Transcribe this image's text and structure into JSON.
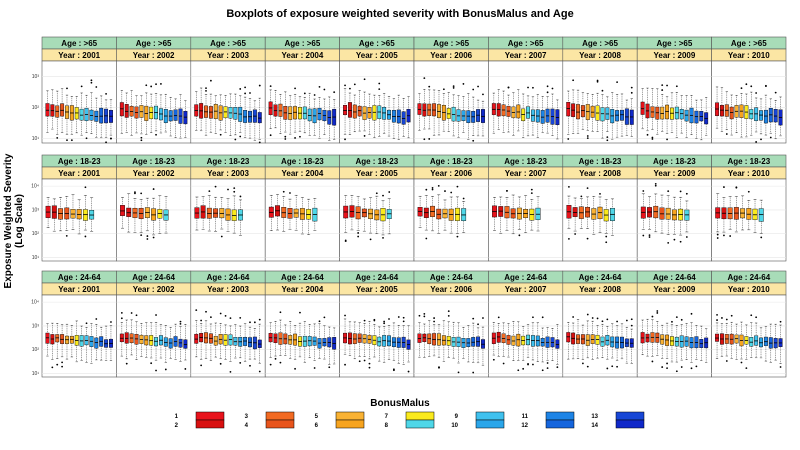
{
  "chart_data": {
    "type": "boxplot",
    "title": "Boxplots of exposure weighted severity with BonusMalus and Age",
    "ylabel": "Exposure Weighted Severity (Log Scale)",
    "y_scale": "log",
    "age_rows": [
      {
        "label": "Age : >65",
        "tick_labels": [
          "10¹",
          "10²",
          "10³"
        ],
        "tick_exponents": [
          1,
          2,
          3
        ],
        "ylim_log10": [
          0.85,
          3.5
        ],
        "bonusmalus_levels": 14
      },
      {
        "label": "Age : 18-23",
        "tick_labels": [
          "10¹",
          "10²",
          "10³",
          "10⁴"
        ],
        "tick_exponents": [
          1,
          2,
          3,
          4
        ],
        "ylim_log10": [
          0.85,
          4.3
        ],
        "bonusmalus_levels": 8
      },
      {
        "label": "Age : 24-64",
        "tick_labels": [
          "10¹",
          "10²",
          "10³",
          "10⁴"
        ],
        "tick_exponents": [
          1,
          2,
          3,
          4
        ],
        "ylim_log10": [
          0.85,
          4.3
        ],
        "bonusmalus_levels": 14
      }
    ],
    "years": [
      "Year : 2001",
      "Year : 2002",
      "Year : 2003",
      "Year : 2004",
      "Year : 2005",
      "Year : 2006",
      "Year : 2007",
      "Year : 2008",
      "Year : 2009",
      "Year : 2010"
    ],
    "legend": {
      "title": "BonusMalus",
      "entries": [
        {
          "labels": [
            "1",
            "2"
          ],
          "colors": [
            "#e8121b",
            "#d81010"
          ]
        },
        {
          "labels": [
            "3",
            "4"
          ],
          "colors": [
            "#f26a22",
            "#e8541c"
          ]
        },
        {
          "labels": [
            "5",
            "6"
          ],
          "colors": [
            "#f9b233",
            "#f7a41f"
          ]
        },
        {
          "labels": [
            "7",
            "8"
          ],
          "colors": [
            "#faea1d",
            "#4fd7e8"
          ]
        },
        {
          "labels": [
            "9",
            "10"
          ],
          "colors": [
            "#3fc1ee",
            "#2aa6ea"
          ]
        },
        {
          "labels": [
            "11",
            "12"
          ],
          "colors": [
            "#1d84e6",
            "#1565dd"
          ]
        },
        {
          "labels": [
            "13",
            "14"
          ],
          "colors": [
            "#1746d6",
            "#1028c9"
          ]
        }
      ]
    },
    "series_colors": [
      "#e8121b",
      "#d81010",
      "#f26a22",
      "#e8541c",
      "#f9b233",
      "#f7a41f",
      "#faea1d",
      "#4fd7e8",
      "#3fc1ee",
      "#2aa6ea",
      "#1d84e6",
      "#1565dd",
      "#1746d6",
      "#1028c9"
    ],
    "approx_box_stats_log10": {
      "age_gt65": {
        "median": 1.95,
        "q1": 1.72,
        "q3": 2.12,
        "lower": 1.25,
        "upper": 2.55
      },
      "age_18_23": {
        "median": 2.95,
        "q1": 2.7,
        "q3": 3.15,
        "lower": 2.15,
        "upper": 3.6
      },
      "age_24_64": {
        "median": 2.5,
        "q1": 2.3,
        "q3": 2.7,
        "lower": 1.7,
        "upper": 3.2
      }
    },
    "colors": {
      "strip_age": "#a8dcb8",
      "strip_year": "#fbe6a4",
      "panel_border": "#555555",
      "grid": "#e6e6e6",
      "box_outline": "#000000"
    }
  }
}
